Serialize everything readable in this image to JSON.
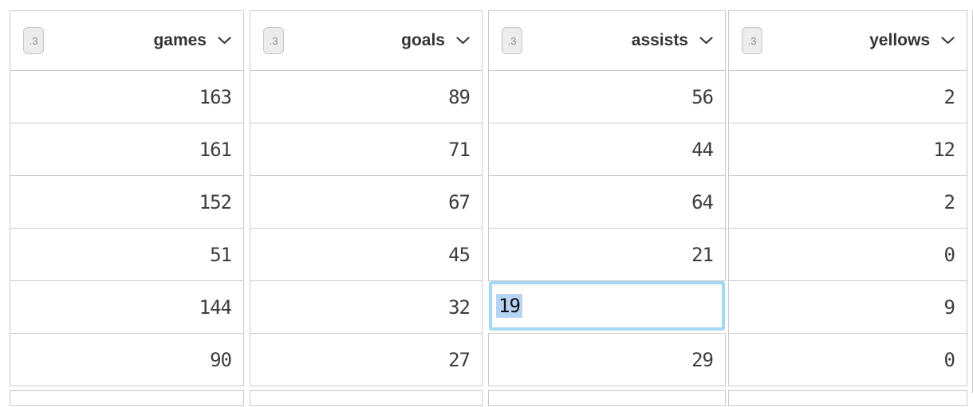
{
  "table": {
    "columns": [
      {
        "type_badge": ".3",
        "label": "games",
        "values": [
          "163",
          "161",
          "152",
          "51",
          "144",
          "90"
        ]
      },
      {
        "type_badge": ".3",
        "label": "goals",
        "values": [
          "89",
          "71",
          "67",
          "45",
          "32",
          "27"
        ]
      },
      {
        "type_badge": ".3",
        "label": "assists",
        "values": [
          "56",
          "44",
          "64",
          "21",
          "19",
          "29"
        ]
      },
      {
        "type_badge": ".3",
        "label": "yellows",
        "values": [
          "2",
          "12",
          "2",
          "0",
          "9",
          "0"
        ]
      }
    ],
    "editing": {
      "column": "assists",
      "col_index": 2,
      "row_index": 4,
      "value": "19",
      "text_selected": true
    }
  },
  "icons": {
    "header_dropdown": "chevron-down-icon"
  },
  "colors": {
    "grid_border": "#c9c9c9",
    "header_text": "#333333",
    "cell_text": "#3d3d3d",
    "badge_bg": "#ececec",
    "badge_border": "#c6c6c6",
    "badge_text": "#8f8f8f",
    "edit_cell_border": "#a5d8f3",
    "selection_bg": "#b6d3f4",
    "edit_cell_text": "#111111"
  }
}
